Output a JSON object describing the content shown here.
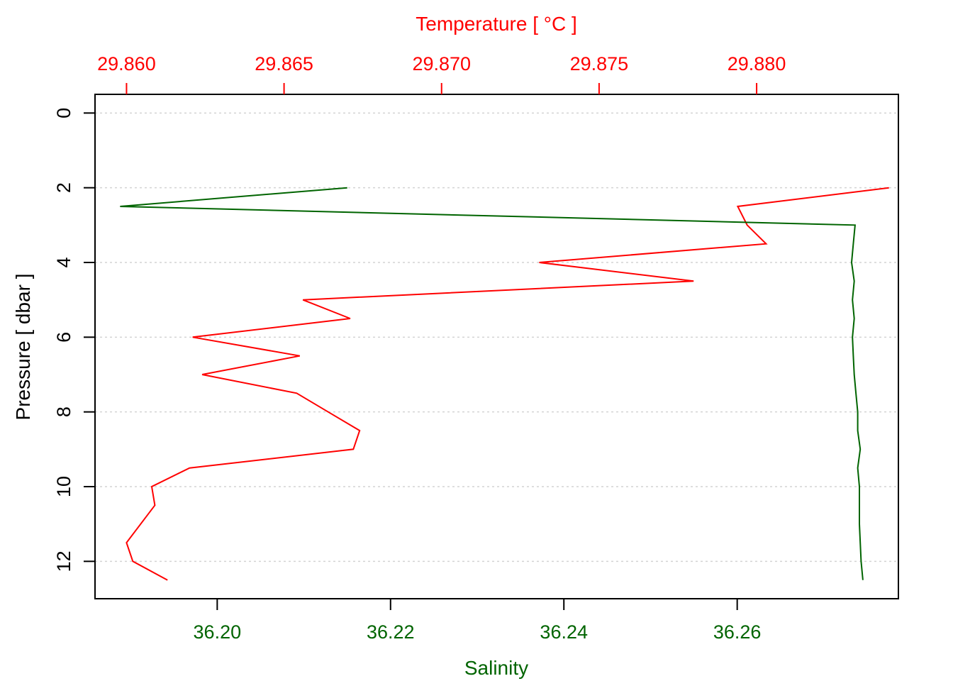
{
  "chart_data": {
    "type": "line",
    "title": "",
    "top_axis": {
      "label": "Temperature [ °C ]",
      "color": "#ff0000",
      "range": [
        29.859,
        29.8845
      ],
      "ticks": [
        29.86,
        29.865,
        29.87,
        29.875,
        29.88
      ],
      "tick_labels": [
        "29.860",
        "29.865",
        "29.870",
        "29.875",
        "29.880"
      ]
    },
    "bottom_axis": {
      "label": "Salinity",
      "color": "#006400",
      "range": [
        36.1859,
        36.2786
      ],
      "ticks": [
        36.2,
        36.22,
        36.24,
        36.26
      ],
      "tick_labels": [
        "36.20",
        "36.22",
        "36.24",
        "36.26"
      ]
    },
    "left_axis": {
      "label": "Pressure [ dbar ]",
      "color": "#000000",
      "range": [
        13.0,
        -0.5
      ],
      "reversed": true,
      "ticks": [
        0,
        2,
        4,
        6,
        8,
        10,
        12
      ],
      "tick_labels": [
        "0",
        "2",
        "4",
        "6",
        "8",
        "10",
        "12"
      ]
    },
    "grid": "horizontal dotted at y ticks",
    "series": [
      {
        "axis": "top",
        "color": "#ff0000",
        "points": [
          {
            "x": 29.8842,
            "y": 2.0
          },
          {
            "x": 29.8794,
            "y": 2.5
          },
          {
            "x": 29.8797,
            "y": 3.0
          },
          {
            "x": 29.8803,
            "y": 3.5
          },
          {
            "x": 29.8731,
            "y": 4.0
          },
          {
            "x": 29.878,
            "y": 4.5
          },
          {
            "x": 29.8656,
            "y": 5.0
          },
          {
            "x": 29.8671,
            "y": 5.5
          },
          {
            "x": 29.8621,
            "y": 6.0
          },
          {
            "x": 29.8655,
            "y": 6.5
          },
          {
            "x": 29.8624,
            "y": 7.0
          },
          {
            "x": 29.8654,
            "y": 7.5
          },
          {
            "x": 29.8664,
            "y": 8.0
          },
          {
            "x": 29.8674,
            "y": 8.5
          },
          {
            "x": 29.8672,
            "y": 9.0
          },
          {
            "x": 29.862,
            "y": 9.5
          },
          {
            "x": 29.8608,
            "y": 10.0
          },
          {
            "x": 29.8609,
            "y": 10.5
          },
          {
            "x": 29.86,
            "y": 11.5
          },
          {
            "x": 29.8602,
            "y": 12.0
          },
          {
            "x": 29.8613,
            "y": 12.5
          }
        ]
      },
      {
        "axis": "bottom",
        "color": "#006400",
        "points": [
          {
            "x": 36.215,
            "y": 2.0
          },
          {
            "x": 36.1888,
            "y": 2.5
          },
          {
            "x": 36.2736,
            "y": 3.0
          },
          {
            "x": 36.2734,
            "y": 3.5
          },
          {
            "x": 36.2732,
            "y": 4.0
          },
          {
            "x": 36.2735,
            "y": 4.5
          },
          {
            "x": 36.2733,
            "y": 5.0
          },
          {
            "x": 36.2735,
            "y": 5.5
          },
          {
            "x": 36.2733,
            "y": 6.0
          },
          {
            "x": 36.2734,
            "y": 6.5
          },
          {
            "x": 36.2735,
            "y": 7.0
          },
          {
            "x": 36.2737,
            "y": 7.5
          },
          {
            "x": 36.2739,
            "y": 8.0
          },
          {
            "x": 36.2739,
            "y": 8.5
          },
          {
            "x": 36.2742,
            "y": 9.0
          },
          {
            "x": 36.2739,
            "y": 9.5
          },
          {
            "x": 36.2741,
            "y": 10.0
          },
          {
            "x": 36.2741,
            "y": 10.5
          },
          {
            "x": 36.2741,
            "y": 11.0
          },
          {
            "x": 36.2742,
            "y": 11.5
          },
          {
            "x": 36.2743,
            "y": 12.0
          },
          {
            "x": 36.2745,
            "y": 12.5
          }
        ]
      }
    ]
  }
}
